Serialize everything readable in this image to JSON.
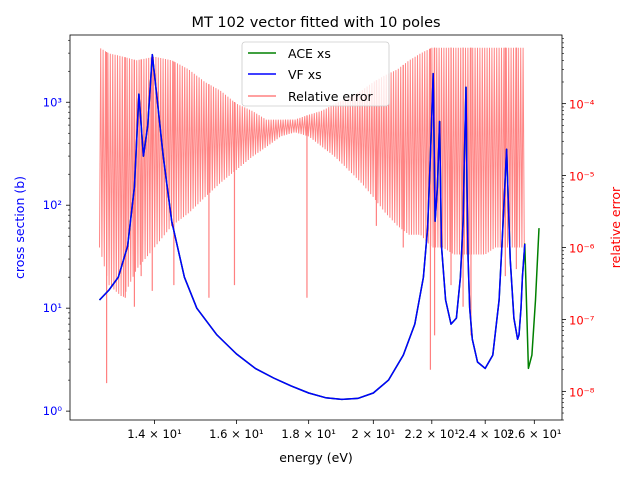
{
  "chart_data": {
    "type": "line",
    "title": "MT 102 vector fitted with 10 poles",
    "xlabel": "energy (eV)",
    "ylabel_left": "cross section (b)",
    "ylabel_right": "relative error",
    "x_scale": "log",
    "y_left_scale": "log",
    "y_right_scale": "log",
    "xlim": [
      12.2,
      27.2
    ],
    "ylim_left": [
      0.82,
      4500
    ],
    "ylim_right": [
      4e-09,
      0.0009
    ],
    "grid": false,
    "legend_position": "upper center",
    "colors": {
      "ace": "#008000",
      "vf": "#0000ff",
      "error": "#ff8080",
      "left_axis": "#0000ff",
      "right_axis": "#ff0000"
    },
    "x_ticks": [
      {
        "value": 14,
        "label": "1.4 × 10¹"
      },
      {
        "value": 16,
        "label": "1.6 × 10¹"
      },
      {
        "value": 18,
        "label": "1.8 × 10¹"
      },
      {
        "value": 20,
        "label": "2 × 10¹"
      },
      {
        "value": 22,
        "label": "2.2 × 10¹"
      },
      {
        "value": 24,
        "label": "2.4 × 10¹"
      },
      {
        "value": 26,
        "label": "2.6 × 10¹"
      }
    ],
    "y_left_ticks": [
      {
        "value": 1,
        "label": "10⁰"
      },
      {
        "value": 10,
        "label": "10¹"
      },
      {
        "value": 100,
        "label": "10²"
      },
      {
        "value": 1000,
        "label": "10³"
      }
    ],
    "y_right_ticks": [
      {
        "value": 1e-08,
        "label": "10⁻⁸"
      },
      {
        "value": 1e-07,
        "label": "10⁻⁷"
      },
      {
        "value": 1e-06,
        "label": "10⁻⁶"
      },
      {
        "value": 1e-05,
        "label": "10⁻⁵"
      },
      {
        "value": 0.0001,
        "label": "10⁻⁴"
      }
    ],
    "series": [
      {
        "name": "ACE xs",
        "axis": "left",
        "x": [
          12.8,
          13.0,
          13.2,
          13.4,
          13.55,
          13.65,
          13.75,
          13.85,
          13.95,
          14.05,
          14.2,
          14.4,
          14.7,
          15.0,
          15.5,
          16.0,
          16.5,
          17.0,
          17.5,
          18.0,
          18.5,
          19.0,
          19.5,
          20.0,
          20.5,
          21.0,
          21.4,
          21.7,
          21.85,
          21.95,
          22.05,
          22.12,
          22.2,
          22.28,
          22.35,
          22.5,
          22.7,
          22.9,
          23.05,
          23.15,
          23.2,
          23.26,
          23.3,
          23.34,
          23.4,
          23.5,
          23.7,
          24.0,
          24.3,
          24.55,
          24.7,
          24.85,
          25.0,
          25.15,
          25.3,
          25.36,
          25.44,
          25.5,
          25.6,
          25.75,
          25.9,
          26.05,
          26.2
        ],
        "values": [
          12,
          15,
          20,
          40,
          150,
          1200,
          300,
          600,
          2900,
          1200,
          300,
          70,
          20,
          10,
          5.5,
          3.6,
          2.6,
          2.1,
          1.75,
          1.5,
          1.35,
          1.3,
          1.33,
          1.5,
          2,
          3.5,
          7,
          20,
          60,
          300,
          1900,
          70,
          150,
          650,
          40,
          12,
          7,
          8,
          20,
          70,
          300,
          1400,
          150,
          30,
          10,
          5,
          3,
          2.6,
          3.5,
          12,
          60,
          350,
          30,
          8,
          5,
          5.5,
          10,
          20,
          42,
          2.6,
          3.5,
          12,
          60
        ]
      },
      {
        "name": "VF xs",
        "axis": "left",
        "x": [
          12.8,
          13.0,
          13.2,
          13.4,
          13.55,
          13.65,
          13.75,
          13.85,
          13.95,
          14.05,
          14.2,
          14.4,
          14.7,
          15.0,
          15.5,
          16.0,
          16.5,
          17.0,
          17.5,
          18.0,
          18.5,
          19.0,
          19.5,
          20.0,
          20.5,
          21.0,
          21.4,
          21.7,
          21.85,
          21.95,
          22.05,
          22.12,
          22.2,
          22.28,
          22.35,
          22.5,
          22.7,
          22.9,
          23.05,
          23.15,
          23.2,
          23.26,
          23.3,
          23.34,
          23.4,
          23.5,
          23.7,
          24.0,
          24.3,
          24.55,
          24.7,
          24.85,
          25.0,
          25.15,
          25.3,
          25.36,
          25.44,
          25.5,
          25.6
        ],
        "values": [
          12,
          15,
          20,
          40,
          150,
          1200,
          300,
          600,
          2900,
          1200,
          300,
          70,
          20,
          10,
          5.5,
          3.6,
          2.6,
          2.1,
          1.75,
          1.5,
          1.35,
          1.3,
          1.33,
          1.5,
          2,
          3.5,
          7,
          20,
          60,
          300,
          1900,
          70,
          150,
          650,
          40,
          12,
          7,
          8,
          20,
          70,
          300,
          1400,
          150,
          30,
          10,
          5,
          3,
          2.6,
          3.5,
          12,
          60,
          350,
          30,
          8,
          5,
          5.5,
          10,
          20,
          42
        ]
      },
      {
        "name": "Relative error",
        "axis": "right",
        "x_range": [
          12.8,
          25.6
        ],
        "envelope_x": [
          12.8,
          13.0,
          13.3,
          13.6,
          14.0,
          14.4,
          14.8,
          15.2,
          15.6,
          16.0,
          16.4,
          16.8,
          17.2,
          17.6,
          18.0,
          18.4,
          18.8,
          19.2,
          19.6,
          20.0,
          20.4,
          20.8,
          21.2,
          21.6,
          22.0,
          22.4,
          22.8,
          23.2,
          23.6,
          24.0,
          24.4,
          24.8,
          25.2,
          25.6
        ],
        "envelope_upper": [
          0.0006,
          0.0005,
          0.00045,
          0.0004,
          0.00045,
          0.0004,
          0.0003,
          0.0002,
          0.00015,
          0.0001,
          8e-05,
          6e-05,
          6e-05,
          6e-05,
          7e-05,
          8e-05,
          0.0001,
          0.00012,
          0.00015,
          0.0002,
          0.00025,
          0.0003,
          0.0004,
          0.0005,
          0.0006,
          0.0006,
          0.0006,
          0.0006,
          0.0006,
          0.0006,
          0.0006,
          0.0006,
          0.0006,
          0.0006
        ],
        "envelope_lower": [
          1e-06,
          3e-07,
          2e-07,
          5e-07,
          1e-06,
          2e-06,
          3e-06,
          5e-06,
          8e-06,
          1.2e-05,
          1.8e-05,
          2.5e-05,
          3.5e-05,
          4e-05,
          3.5e-05,
          2.5e-05,
          1.8e-05,
          1.2e-05,
          8e-06,
          5e-06,
          3e-06,
          2e-06,
          1.5e-06,
          1.5e-06,
          1e-06,
          1e-06,
          8e-07,
          8e-07,
          8e-07,
          8e-07,
          1e-06,
          1e-06,
          1e-06,
          1e-06
        ],
        "dip_x": [
          12.95,
          13.35,
          13.55,
          13.7,
          13.95,
          14.45,
          15.3,
          15.95,
          17.95,
          20.1,
          21.0,
          21.95,
          22.1,
          22.7,
          23.15,
          23.45,
          24.8,
          25.25
        ],
        "dip_values": [
          1.3e-08,
          2e-07,
          1.5e-07,
          4e-07,
          2.5e-07,
          3e-07,
          2e-07,
          3e-07,
          2e-07,
          2e-06,
          1e-06,
          2e-08,
          6e-08,
          3e-07,
          1.5e-07,
          6e-08,
          4e-07,
          5e-07
        ]
      }
    ]
  }
}
